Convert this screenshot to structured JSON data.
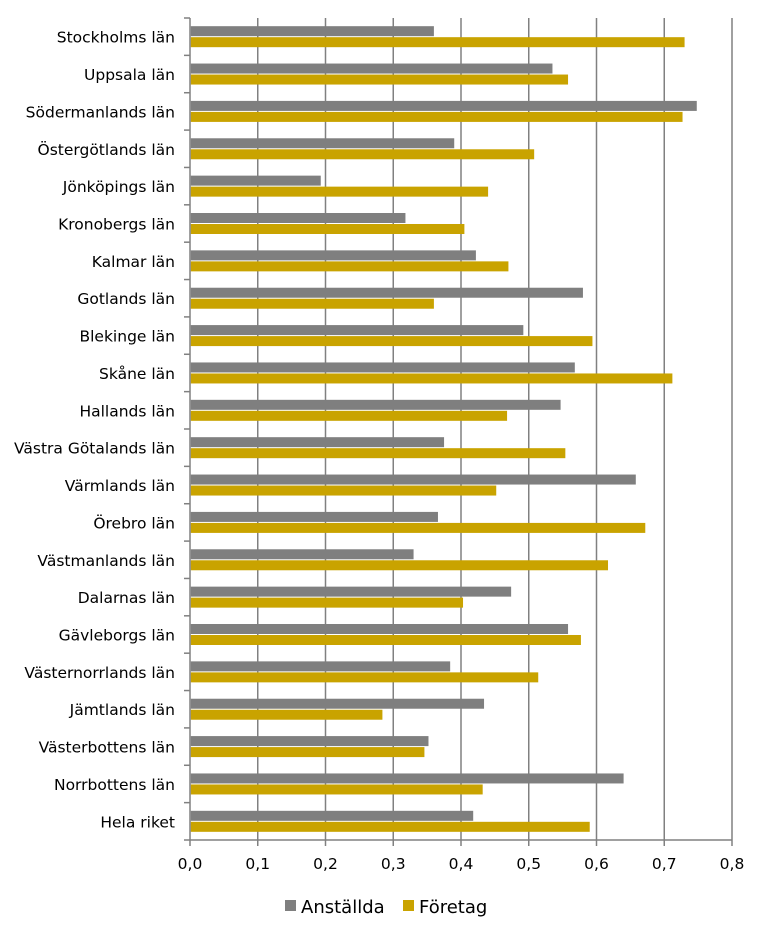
{
  "chart_data": {
    "type": "bar",
    "orientation": "horizontal",
    "categories": [
      "Stockholms län",
      "Uppsala län",
      "Södermanlands län",
      "Östergötlands län",
      "Jönköpings län",
      "Kronobergs län",
      "Kalmar län",
      "Gotlands län",
      "Blekinge län",
      "Skåne län",
      "Hallands län",
      "Västra Götalands län",
      "Värmlands län",
      "Örebro län",
      "Västmanlands län",
      "Dalarnas län",
      "Gävleborgs län",
      "Västernorrlands län",
      "Jämtlands län",
      "Västerbottens län",
      "Norrbottens län",
      "Hela riket"
    ],
    "series": [
      {
        "name": "Anställda",
        "color": "#7f7f7f",
        "values": [
          0.36,
          0.535,
          0.748,
          0.39,
          0.193,
          0.318,
          0.422,
          0.58,
          0.492,
          0.568,
          0.547,
          0.375,
          0.658,
          0.366,
          0.33,
          0.474,
          0.558,
          0.384,
          0.434,
          0.352,
          0.64,
          0.418
        ]
      },
      {
        "name": "Företag",
        "color": "#c9a300",
        "values": [
          0.73,
          0.558,
          0.727,
          0.508,
          0.44,
          0.405,
          0.47,
          0.36,
          0.594,
          0.712,
          0.468,
          0.554,
          0.452,
          0.672,
          0.617,
          0.403,
          0.577,
          0.514,
          0.284,
          0.346,
          0.432,
          0.59
        ]
      }
    ],
    "xlim": [
      0,
      0.8
    ],
    "xticks": [
      "0,0",
      "0,1",
      "0,2",
      "0,3",
      "0,4",
      "0,5",
      "0,6",
      "0,7",
      "0,8"
    ],
    "grid": "vertical",
    "legend_position": "bottom",
    "title": "",
    "xlabel": "",
    "ylabel": ""
  }
}
